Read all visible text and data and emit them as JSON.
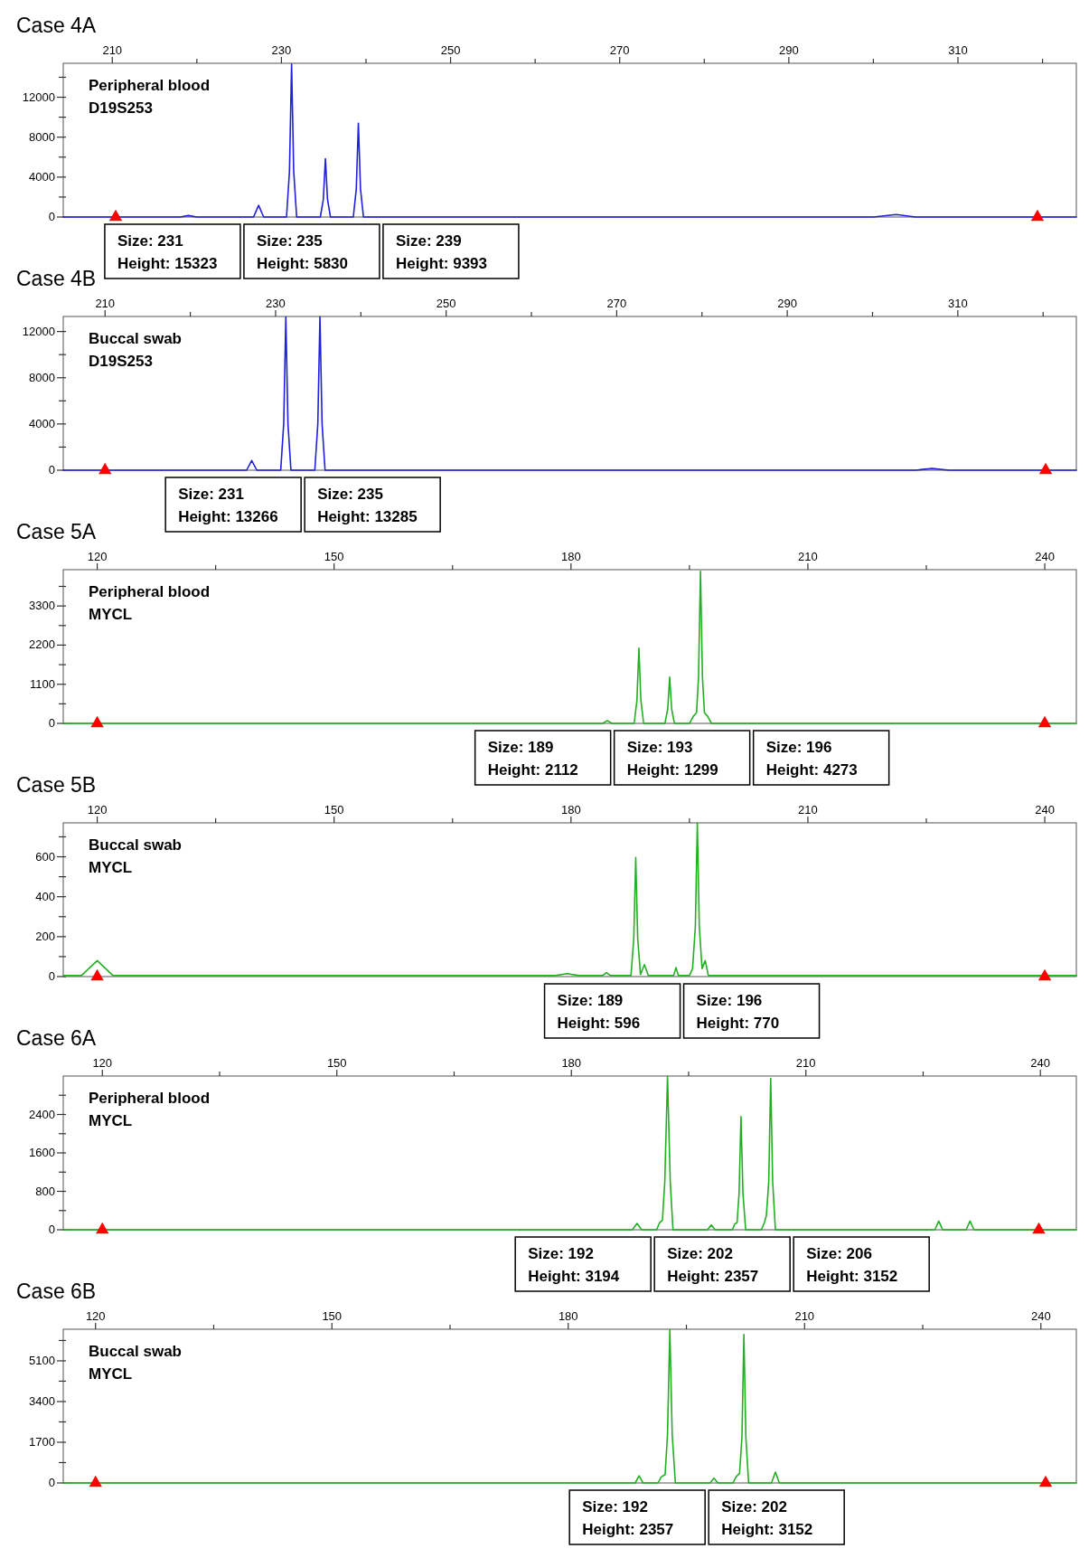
{
  "chart_data": [
    {
      "type": "line",
      "title": "Case 4A",
      "xlim": [
        204.2,
        324
      ],
      "ylim": [
        0,
        15400
      ],
      "xticks": [
        210,
        {
          "value": 220,
          "label": null
        },
        230,
        {
          "value": 240,
          "label": null
        },
        250,
        {
          "value": 260,
          "label": null
        },
        270,
        {
          "value": 280,
          "label": null
        },
        290,
        {
          "value": 300,
          "label": null
        },
        310,
        {
          "value": 320,
          "label": null
        }
      ],
      "yticks": [
        0,
        {
          "value": 2000,
          "label": null
        },
        4000,
        {
          "value": 6000,
          "label": null
        },
        8000,
        {
          "value": 10000,
          "label": null
        },
        12000,
        {
          "value": 14000,
          "label": null
        }
      ],
      "annotations": [
        "Peripheral blood",
        "D19S253",
        "Size: 231\nHeight: 15323",
        "Size: 235\nHeight: 5830",
        "Size: 239\nHeight: 9393"
      ],
      "series": [
        {
          "color": "#1f1fe0",
          "x": [
            204.2,
            218,
            219,
            220,
            226.7,
            227.3,
            227.9,
            230.6,
            230.95,
            231.2,
            231.45,
            231.8,
            234.6,
            234.95,
            235.2,
            235.45,
            235.8,
            238.5,
            238.85,
            239.1,
            239.35,
            239.7,
            300,
            302.7,
            305,
            324
          ],
          "values": [
            0,
            0,
            150,
            0,
            0,
            1160,
            0,
            0,
            4600,
            15323,
            4600,
            0,
            0,
            1750,
            5830,
            1750,
            0,
            0,
            2800,
            9393,
            2800,
            0,
            0,
            250,
            0,
            0
          ]
        },
        {
          "type": "scatter",
          "color": "#ff0000",
          "marker": "triangle",
          "x": [
            210.4,
            319.4
          ],
          "values": [
            0,
            0
          ]
        }
      ]
    },
    {
      "type": "line",
      "title": "Case 4B",
      "xlim": [
        205.1,
        323.9
      ],
      "ylim": [
        0,
        13300
      ],
      "xticks": [
        210,
        {
          "value": 220,
          "label": null
        },
        230,
        {
          "value": 240,
          "label": null
        },
        250,
        {
          "value": 260,
          "label": null
        },
        270,
        {
          "value": 280,
          "label": null
        },
        290,
        {
          "value": 300,
          "label": null
        },
        310,
        {
          "value": 320,
          "label": null
        }
      ],
      "yticks": [
        0,
        {
          "value": 2000,
          "label": null
        },
        4000,
        {
          "value": 6000,
          "label": null
        },
        8000,
        {
          "value": 10000,
          "label": null
        },
        12000
      ],
      "annotations": [
        "Buccal swab",
        "D19S253",
        "Size: 231\nHeight: 13266",
        "Size: 235\nHeight: 13285"
      ],
      "series": [
        {
          "color": "#1f1fe0",
          "x": [
            205.1,
            226.6,
            227.2,
            227.8,
            230.6,
            230.95,
            231.2,
            231.45,
            231.8,
            234.6,
            234.95,
            235.2,
            235.45,
            235.8,
            305,
            307,
            309,
            323.9
          ],
          "values": [
            0,
            0,
            840,
            0,
            0,
            4000,
            13266,
            4000,
            0,
            0,
            4000,
            13285,
            4000,
            0,
            0,
            150,
            0,
            0
          ]
        },
        {
          "type": "scatter",
          "color": "#ff0000",
          "marker": "triangle",
          "x": [
            210,
            320.3
          ],
          "values": [
            0,
            0
          ]
        }
      ]
    },
    {
      "type": "line",
      "title": "Case 5A",
      "xlim": [
        115.7,
        244
      ],
      "ylim": [
        0,
        4320
      ],
      "xticks": [
        120,
        {
          "value": 135,
          "label": null
        },
        150,
        {
          "value": 165,
          "label": null
        },
        180,
        {
          "value": 195,
          "label": null
        },
        210,
        {
          "value": 225,
          "label": null
        },
        240
      ],
      "yticks": [
        0,
        {
          "value": 550,
          "label": null
        },
        1100,
        {
          "value": 1650,
          "label": null
        },
        2200,
        {
          "value": 2750,
          "label": null
        },
        3300,
        {
          "value": 3850,
          "label": null
        }
      ],
      "annotations": [
        "Peripheral blood",
        "MYCL",
        "Size: 189\nHeight: 2112",
        "Size: 193\nHeight: 1299",
        "Size: 196\nHeight: 4273"
      ],
      "series": [
        {
          "color": "#22b022",
          "x": [
            115.7,
            184,
            184.6,
            185.2,
            188,
            188.35,
            188.6,
            188.85,
            189.2,
            191.9,
            192.25,
            192.5,
            192.75,
            193.1,
            195,
            195.5,
            195.9,
            196.15,
            196.4,
            196.65,
            196.9,
            197.3,
            197.8,
            244
          ],
          "values": [
            0,
            0,
            80,
            0,
            0,
            650,
            2112,
            650,
            0,
            0,
            400,
            1299,
            400,
            0,
            0,
            200,
            300,
            1300,
            4273,
            1300,
            300,
            200,
            0,
            0
          ]
        },
        {
          "type": "scatter",
          "color": "#ff0000",
          "marker": "triangle",
          "x": [
            120,
            240
          ],
          "values": [
            0,
            0
          ]
        }
      ]
    },
    {
      "type": "line",
      "title": "Case 5B",
      "xlim": [
        115.7,
        244
      ],
      "ylim": [
        0,
        770
      ],
      "xticks": [
        120,
        {
          "value": 135,
          "label": null
        },
        150,
        {
          "value": 165,
          "label": null
        },
        180,
        {
          "value": 195,
          "label": null
        },
        210,
        {
          "value": 225,
          "label": null
        },
        240
      ],
      "yticks": [
        0,
        {
          "value": 100,
          "label": null
        },
        200,
        {
          "value": 300,
          "label": null
        },
        400,
        {
          "value": 500,
          "label": null
        },
        600,
        {
          "value": 700,
          "label": null
        }
      ],
      "annotations": [
        "Buccal swab",
        "MYCL",
        "Size: 189\nHeight: 596",
        "Size: 196\nHeight: 770"
      ],
      "series": [
        {
          "color": "#22b022",
          "x": [
            115.7,
            118,
            120,
            122,
            178,
            179.5,
            181,
            184,
            184.5,
            185,
            187.6,
            187.95,
            188.2,
            188.45,
            188.8,
            189.3,
            189.8,
            193,
            193.3,
            193.6,
            195,
            195.4,
            195.75,
            196,
            196.25,
            196.6,
            197,
            197.4,
            244
          ],
          "values": [
            5,
            5,
            80,
            5,
            5,
            15,
            5,
            5,
            20,
            5,
            5,
            190,
            596,
            190,
            10,
            60,
            5,
            5,
            45,
            5,
            5,
            40,
            250,
            770,
            250,
            40,
            80,
            5,
            5
          ]
        },
        {
          "type": "scatter",
          "color": "#ff0000",
          "marker": "triangle",
          "x": [
            120,
            240
          ],
          "values": [
            0,
            0
          ]
        }
      ]
    },
    {
      "type": "line",
      "title": "Case 6A",
      "xlim": [
        115,
        244.6
      ],
      "ylim": [
        0,
        3200
      ],
      "xticks": [
        120,
        {
          "value": 135,
          "label": null
        },
        150,
        {
          "value": 165,
          "label": null
        },
        180,
        {
          "value": 195,
          "label": null
        },
        210,
        {
          "value": 225,
          "label": null
        },
        240
      ],
      "yticks": [
        0,
        {
          "value": 400,
          "label": null
        },
        800,
        {
          "value": 1200,
          "label": null
        },
        1600,
        {
          "value": 2000,
          "label": null
        },
        2400,
        {
          "value": 2800,
          "label": null
        }
      ],
      "annotations": [
        "Peripheral blood",
        "MYCL",
        "Size: 192\nHeight: 3194",
        "Size: 202\nHeight: 2357",
        "Size: 206\nHeight: 3152"
      ],
      "series": [
        {
          "color": "#22b022",
          "x": [
            115,
            187.8,
            188.4,
            189,
            190.9,
            191.3,
            191.65,
            191.95,
            192.3,
            192.65,
            193,
            197.4,
            197.9,
            198.4,
            200.6,
            200.9,
            201.2,
            201.45,
            201.7,
            201.95,
            202.3,
            204.3,
            204.7,
            204.95,
            205.25,
            205.5,
            205.75,
            206.1,
            226.5,
            227,
            227.5,
            230.5,
            231,
            231.5,
            244.6
          ],
          "values": [
            0,
            0,
            130,
            0,
            0,
            150,
            200,
            1000,
            3194,
            1000,
            0,
            0,
            100,
            0,
            0,
            120,
            150,
            750,
            2357,
            750,
            0,
            0,
            150,
            300,
            1000,
            3152,
            1000,
            0,
            0,
            180,
            0,
            0,
            180,
            0,
            0
          ]
        },
        {
          "type": "scatter",
          "color": "#ff0000",
          "marker": "triangle",
          "x": [
            120,
            239.8
          ],
          "values": [
            0,
            0
          ]
        }
      ]
    },
    {
      "type": "line",
      "title": "Case 6B",
      "xlim": [
        115.9,
        244.5
      ],
      "ylim": [
        0,
        6420
      ],
      "xticks": [
        120,
        {
          "value": 135,
          "label": null
        },
        150,
        {
          "value": 165,
          "label": null
        },
        180,
        {
          "value": 195,
          "label": null
        },
        210,
        {
          "value": 225,
          "label": null
        },
        240
      ],
      "yticks": [
        0,
        {
          "value": 850,
          "label": null
        },
        1700,
        {
          "value": 2550,
          "label": null
        },
        3400,
        {
          "value": 4250,
          "label": null
        },
        5100,
        {
          "value": 5950,
          "label": null
        }
      ],
      "annotations": [
        "Buccal swab",
        "MYCL",
        "Size: 192\nHeight: 2357",
        "Size: 202\nHeight: 3152"
      ],
      "series": [
        {
          "color": "#22b022",
          "x": [
            115.9,
            188.5,
            189,
            189.5,
            191.4,
            191.8,
            192.3,
            192.6,
            192.9,
            193.2,
            193.6,
            198,
            198.5,
            199,
            200.9,
            201.3,
            201.75,
            202.05,
            202.3,
            202.55,
            202.9,
            205.8,
            206.3,
            206.8,
            244.5
          ],
          "values": [
            0,
            0,
            300,
            0,
            0,
            250,
            350,
            2000,
            6400,
            2000,
            0,
            0,
            200,
            0,
            0,
            250,
            400,
            1900,
            6200,
            1900,
            0,
            0,
            450,
            0,
            0
          ]
        },
        {
          "type": "scatter",
          "color": "#ff0000",
          "marker": "triangle",
          "x": [
            120,
            240.6
          ],
          "values": [
            0,
            0
          ]
        }
      ]
    }
  ]
}
